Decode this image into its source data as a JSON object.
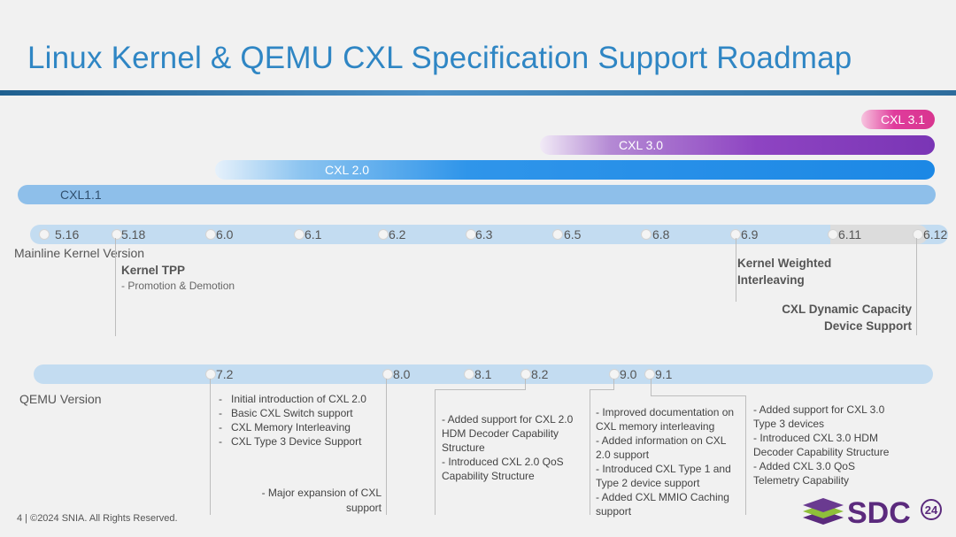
{
  "title": "Linux Kernel & QEMU CXL Specification Support Roadmap",
  "spec_bars": {
    "cxl31": "CXL 3.1",
    "cxl30": "CXL 3.0",
    "cxl20": "CXL 2.0",
    "cxl11": "CXL1.1"
  },
  "colors": {
    "title": "#2f86c4",
    "cxl31": "#e03c9c",
    "cxl30": "#8e44c2",
    "cxl20": "#1c88e5",
    "cxl11": "#8ebfea",
    "track": "#c3dcf1"
  },
  "kernel": {
    "label": "Mainline Kernel Version",
    "versions": [
      "5.16",
      "5.18",
      "6.0",
      "6.1",
      "6.2",
      "6.3",
      "6.5",
      "6.8",
      "6.9",
      "6.11",
      "6.12"
    ],
    "features": {
      "tpp_title": "Kernel TPP",
      "tpp_sub": "- Promotion & Demotion",
      "weighted_line1": "Kernel Weighted",
      "weighted_line2": "Interleaving",
      "dcd_line1": "CXL Dynamic Capacity",
      "dcd_line2": "Device Support"
    }
  },
  "qemu": {
    "label": "QEMU Version",
    "versions": [
      "7.2",
      "8.0",
      "8.1",
      "8.2",
      "9.0",
      "9.1"
    ],
    "notes": {
      "v72": [
        "Initial introduction of CXL 2.0",
        "Basic CXL Switch support",
        "CXL Memory Interleaving",
        "CXL Type 3 Device Support"
      ],
      "v80_line1": "- Major expansion of CXL",
      "v80_line2": "support",
      "v82": [
        "- Added support for CXL 2.0",
        "HDM Decoder Capability",
        "Structure",
        "- Introduced CXL 2.0 QoS",
        "Capability Structure"
      ],
      "v90": [
        "- Improved documentation on",
        "CXL memory interleaving",
        "- Added information on CXL",
        "2.0 support",
        "- Introduced CXL Type 1 and",
        "Type 2 device support",
        "- Added CXL MMIO Caching",
        "support"
      ],
      "v91": [
        "- Added support for CXL 3.0",
        "Type 3 devices",
        "- Introduced CXL 3.0 HDM",
        "Decoder Capability Structure",
        "- Added CXL 3.0 QoS",
        "Telemetry Capability"
      ]
    }
  },
  "footer": "4 | ©2024 SNIA. All Rights Reserved.",
  "logo": {
    "text": "SDC",
    "badge": "24"
  }
}
